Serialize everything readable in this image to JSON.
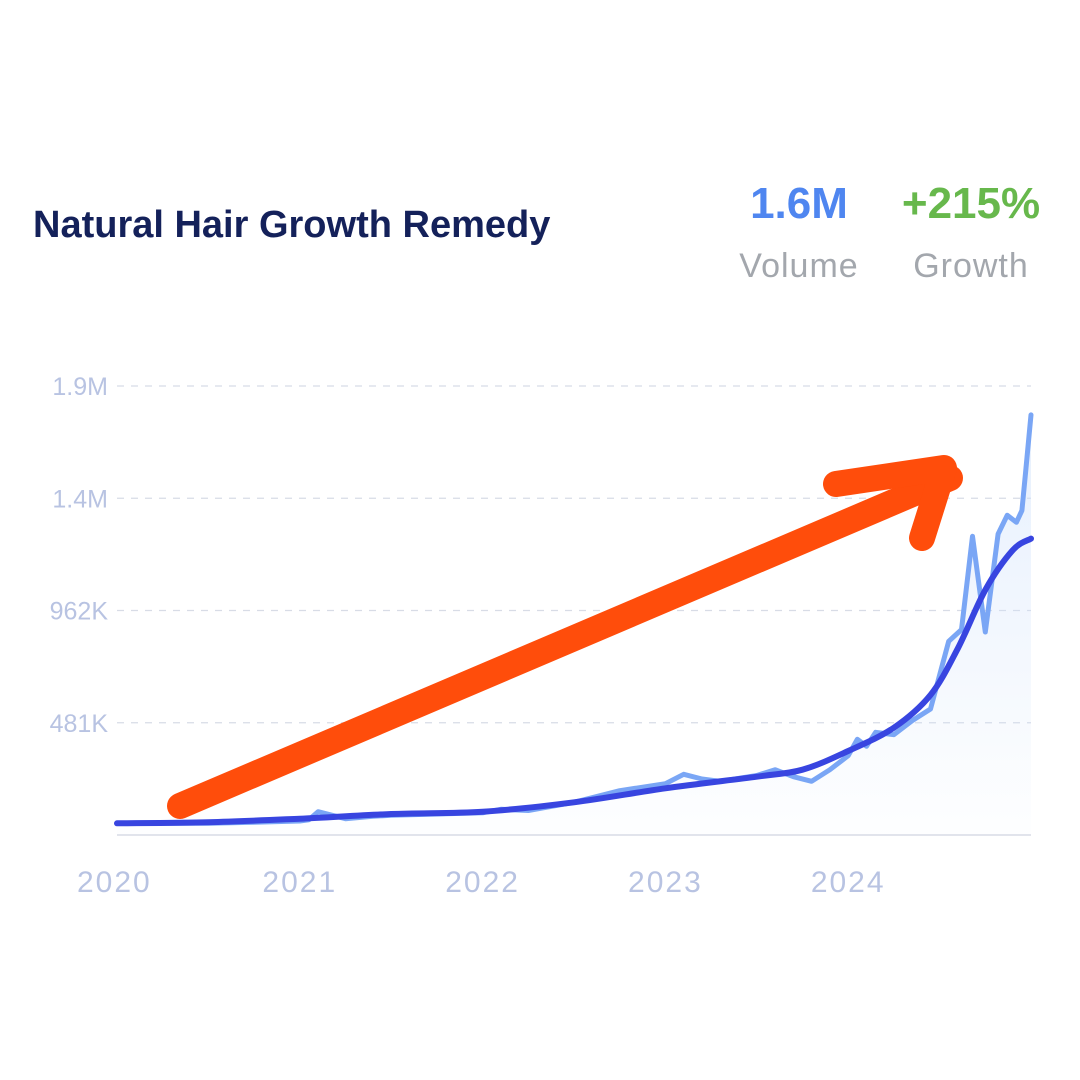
{
  "title": "Natural Hair Growth Remedy",
  "stats": {
    "volume": {
      "value": "1.6M",
      "label": "Volume",
      "color": "#4f86f0"
    },
    "growth": {
      "value": "+215%",
      "label": "Growth",
      "color": "#67b84c"
    }
  },
  "colors": {
    "raw_line": "#7aa6f5",
    "trend_line": "#3845e0",
    "arrow": "#ff4d0b",
    "axis_text": "#b8c3e2",
    "grid": "#d8dce6",
    "area_fill": "#cfe1fb"
  },
  "arrow": {
    "direction": "up-right",
    "meaning": "growth"
  },
  "chart_data": {
    "type": "line",
    "title": "",
    "xlabel": "",
    "ylabel": "",
    "x_ticks": [
      "2020",
      "2021",
      "2022",
      "2023",
      "2024"
    ],
    "x_tick_values": [
      2020.0,
      2021.0,
      2022.0,
      2023.0,
      2024.0
    ],
    "y_ticks": [
      "481K",
      "962K",
      "1.4M",
      "1.9M"
    ],
    "y_tick_values": [
      481000,
      962000,
      1443000,
      1924000
    ],
    "xlim": [
      2020.0,
      2025.0
    ],
    "ylim": [
      0,
      1924000
    ],
    "grid": true,
    "series": [
      {
        "style": "raw",
        "x": [
          2020.0,
          2020.25,
          2020.5,
          2020.75,
          2021.0,
          2021.05,
          2021.1,
          2021.25,
          2021.4,
          2021.5,
          2021.75,
          2022.0,
          2022.1,
          2022.25,
          2022.5,
          2022.75,
          2023.0,
          2023.1,
          2023.2,
          2023.3,
          2023.5,
          2023.6,
          2023.7,
          2023.8,
          2023.9,
          2024.0,
          2024.05,
          2024.1,
          2024.15,
          2024.25,
          2024.35,
          2024.45,
          2024.55,
          2024.62,
          2024.68,
          2024.75,
          2024.82,
          2024.87,
          2024.92,
          2024.95,
          2024.97,
          2025.0
        ],
        "y": [
          50000,
          50000,
          50000,
          55000,
          60000,
          65000,
          100000,
          70000,
          80000,
          85000,
          90000,
          95000,
          110000,
          105000,
          140000,
          190000,
          220000,
          260000,
          240000,
          230000,
          255000,
          280000,
          250000,
          230000,
          280000,
          340000,
          410000,
          380000,
          440000,
          430000,
          490000,
          540000,
          830000,
          880000,
          1280000,
          870000,
          1290000,
          1370000,
          1340000,
          1390000,
          1550000,
          1800000
        ]
      },
      {
        "style": "trend",
        "x": [
          2020.0,
          2020.5,
          2021.0,
          2021.5,
          2022.0,
          2022.5,
          2023.0,
          2023.5,
          2023.75,
          2024.0,
          2024.25,
          2024.45,
          2024.6,
          2024.75,
          2024.9,
          2025.0
        ],
        "y": [
          50000,
          55000,
          70000,
          90000,
          100000,
          140000,
          200000,
          250000,
          280000,
          360000,
          460000,
          600000,
          800000,
          1050000,
          1220000,
          1270000
        ]
      }
    ]
  }
}
